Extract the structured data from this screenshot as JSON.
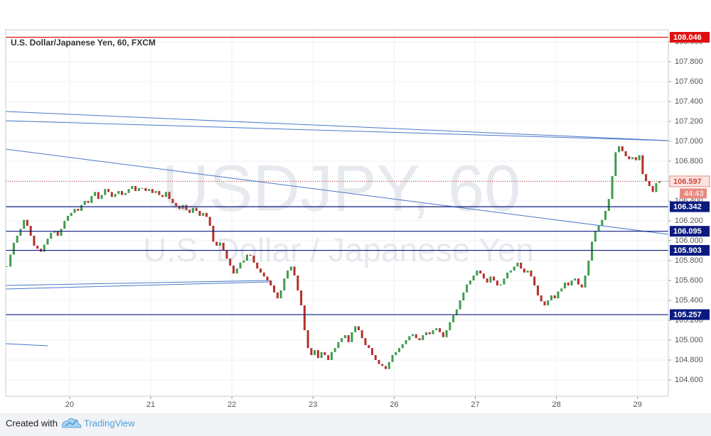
{
  "chart_data": {
    "type": "candlestick",
    "title": "U.S. Dollar/Japanese Yen, 60, FXCM",
    "watermark": "USDJPY, 60",
    "watermark_subtitle": "U.S. Dollar / Japanese Yen",
    "up_color": "#3f9b4e",
    "down_color": "#b4302a",
    "values": [
      105.74,
      105.86,
      105.98,
      106.05,
      106.12,
      106.21,
      106.15,
      106.05,
      105.95,
      105.92,
      105.89,
      105.96,
      106.02,
      106.08,
      106.1,
      106.05,
      106.12,
      106.2,
      106.25,
      106.28,
      106.32,
      106.3,
      106.36,
      106.4,
      106.38,
      106.45,
      106.49,
      106.42,
      106.46,
      106.52,
      106.49,
      106.44,
      106.47,
      106.5,
      106.46,
      106.48,
      106.52,
      106.55,
      106.5,
      106.53,
      106.53,
      106.5,
      106.52,
      106.48,
      106.5,
      106.46,
      106.44,
      106.49,
      106.42,
      106.38,
      106.35,
      106.32,
      106.36,
      106.31,
      106.28,
      106.33,
      106.3,
      106.25,
      106.28,
      106.24,
      106.15,
      105.99,
      105.95,
      105.98,
      105.9,
      105.82,
      105.75,
      105.67,
      105.72,
      105.78,
      105.8,
      105.86,
      105.85,
      105.78,
      105.72,
      105.68,
      105.64,
      105.6,
      105.55,
      105.48,
      105.42,
      105.5,
      105.62,
      105.7,
      105.74,
      105.65,
      105.5,
      105.35,
      105.1,
      104.92,
      104.85,
      104.9,
      104.82,
      104.88,
      104.85,
      104.8,
      104.88,
      104.92,
      104.98,
      105.02,
      105.05,
      104.98,
      105.08,
      105.14,
      105.1,
      105.02,
      104.95,
      104.92,
      104.85,
      104.8,
      104.76,
      104.74,
      104.71,
      104.78,
      104.85,
      104.88,
      104.92,
      104.96,
      105.0,
      105.04,
      105.06,
      105.02,
      105.0,
      105.05,
      105.08,
      105.06,
      105.1,
      105.12,
      105.08,
      105.03,
      105.1,
      105.18,
      105.25,
      105.31,
      105.4,
      105.48,
      105.56,
      105.6,
      105.65,
      105.7,
      105.67,
      105.62,
      105.58,
      105.64,
      105.6,
      105.55,
      105.56,
      105.62,
      105.68,
      105.7,
      105.74,
      105.78,
      105.72,
      105.68,
      105.7,
      105.64,
      105.55,
      105.45,
      105.39,
      105.35,
      105.4,
      105.45,
      105.42,
      105.49,
      105.52,
      105.58,
      105.55,
      105.6,
      105.62,
      105.56,
      105.53,
      105.65,
      105.8,
      105.99,
      106.1,
      106.15,
      106.21,
      106.3,
      106.42,
      106.65,
      106.89,
      106.95,
      106.9,
      106.85,
      106.82,
      106.84,
      106.81,
      106.86,
      106.67,
      106.6,
      106.55,
      106.49,
      106.58,
      106.597
    ],
    "countdown": "44:43",
    "levels": [
      108.046,
      106.342,
      106.095,
      105.903,
      105.257
    ],
    "level_colors": [
      "#e01010",
      "#0b1a80",
      "#0b1a80",
      "#0b1a80",
      "#0b1a80"
    ],
    "ylim": [
      104.436,
      108.121
    ],
    "yticks": [
      {
        "value": 104.6,
        "label": "104.600"
      },
      {
        "value": 104.8,
        "label": "104.800"
      },
      {
        "value": 105.0,
        "label": "105.000"
      },
      {
        "value": 105.2,
        "label": "105.200"
      },
      {
        "value": 105.4,
        "label": "105.400"
      },
      {
        "value": 105.6,
        "label": "105.600"
      },
      {
        "value": 105.8,
        "label": "105.800"
      },
      {
        "value": 106.0,
        "label": "106.000"
      },
      {
        "value": 106.2,
        "label": "106.200"
      },
      {
        "value": 106.4,
        "label": "106.400"
      },
      {
        "value": 106.6,
        "label": "106.600"
      },
      {
        "value": 106.8,
        "label": "106.800"
      },
      {
        "value": 107.0,
        "label": "107.000"
      },
      {
        "value": 107.2,
        "label": "107.200"
      },
      {
        "value": 107.4,
        "label": "107.400"
      },
      {
        "value": 107.6,
        "label": "107.600"
      },
      {
        "value": 107.8,
        "label": "107.800"
      },
      {
        "value": 108.0,
        "label": "108.000"
      }
    ],
    "xlim": [
      -0.4,
      195.6
    ],
    "xticks": [
      {
        "value": 18.5,
        "label": "20"
      },
      {
        "value": 42.5,
        "label": "21"
      },
      {
        "value": 66.5,
        "label": "22"
      },
      {
        "value": 90.5,
        "label": "23"
      },
      {
        "value": 114.5,
        "label": "26"
      },
      {
        "value": 138.5,
        "label": "27"
      },
      {
        "value": 162.5,
        "label": "28"
      },
      {
        "value": 186.5,
        "label": "29"
      }
    ],
    "grid": true
  },
  "footer": {
    "prefix": "Created with",
    "brand": "TradingView"
  }
}
